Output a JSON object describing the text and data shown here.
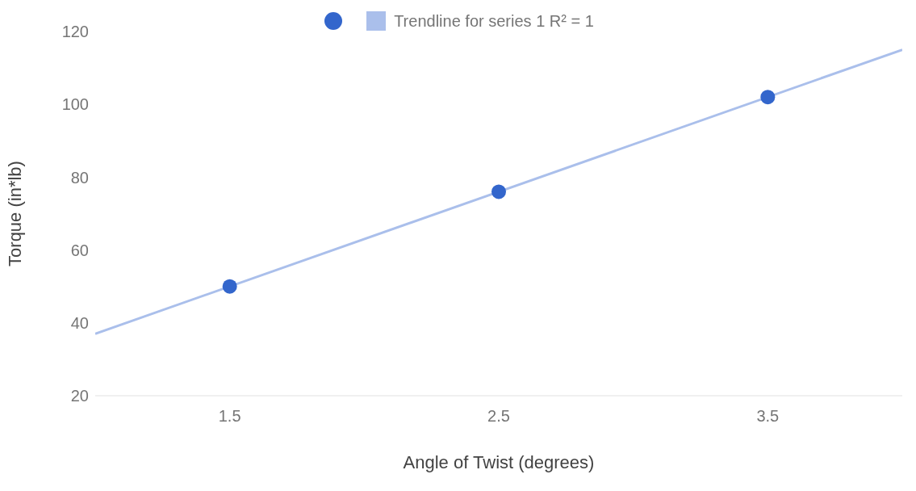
{
  "chart_data": {
    "type": "scatter",
    "xlabel": "Angle of Twist (degrees)",
    "ylabel": "Torque (in*lb)",
    "xlim": [
      1,
      4
    ],
    "xticks": [
      1.5,
      2.5,
      3.5
    ],
    "ylim": [
      20,
      120
    ],
    "yticks": [
      20,
      40,
      60,
      80,
      100,
      120
    ],
    "grid": false,
    "legend": "top",
    "series": [
      {
        "color": "#3366cc",
        "x": [
          1.5,
          2.5,
          3.5
        ],
        "values": [
          50,
          76,
          102
        ],
        "marker": "circle"
      },
      {
        "type": "line",
        "name": "Trendline for series 1 R² = 1",
        "color": "#aabfeb",
        "x": [
          1,
          4
        ],
        "values": [
          37,
          115
        ],
        "line_style": "solid",
        "marker": "none"
      }
    ]
  }
}
